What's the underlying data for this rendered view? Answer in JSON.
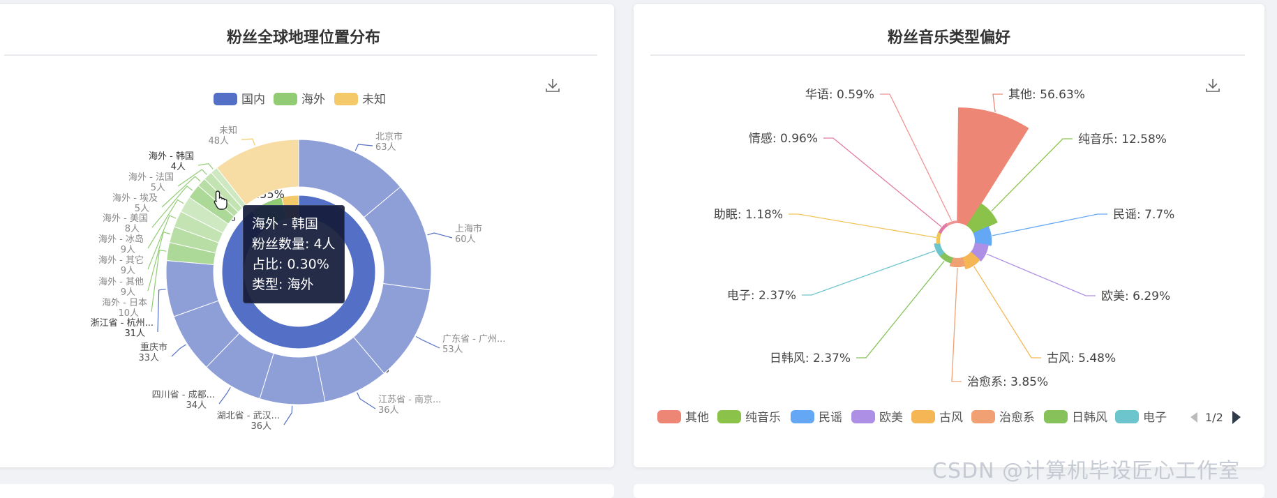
{
  "left_panel": {
    "title": "粉丝全球地理位置分布",
    "download_icon": "download-icon",
    "tooltip": {
      "name": "海外 - 韩国",
      "count": "粉丝数量: 4人",
      "ratio": "占比: 0.30%",
      "type": "类型: 海外"
    }
  },
  "right_panel": {
    "title": "粉丝音乐类型偏好",
    "download_icon": "download-icon",
    "page_indicator": "1/2"
  },
  "watermark": "CSDN @计算机毕设匠心工作室",
  "colors": {
    "domestic": "#5470c6",
    "overseas": "#91cc75",
    "unknown": "#f3c969",
    "domestic_outer": "#8e9fd8",
    "overseas_outer": "#c3e1b2",
    "unknown_outer": "#f7dca3"
  },
  "chart_data": [
    {
      "type": "pie",
      "subtype": "nested-donut",
      "legend": [
        "国内",
        "海外",
        "未知"
      ],
      "legend_placement": "top-center",
      "inner": [
        {
          "name": "国内",
          "percent_label": "89.64%",
          "value": 89.64
        },
        {
          "name": "海外",
          "percent_label": "6.81%",
          "value": 6.81
        },
        {
          "name": "未知",
          "percent_label": "3.55%",
          "value": 3.55
        }
      ],
      "outer": [
        {
          "name": "北京市",
          "value": 63,
          "value_label": "63人",
          "group": "国内"
        },
        {
          "name": "上海市",
          "value": 60,
          "value_label": "60人",
          "group": "国内"
        },
        {
          "name": "广东省 - 广州...",
          "value": 53,
          "value_label": "53人",
          "group": "国内"
        },
        {
          "name": "江苏省 - 南京...",
          "value": 36,
          "value_label": "36人",
          "group": "国内"
        },
        {
          "name": "湖北省 - 武汉...",
          "value": 36,
          "value_label": "36人",
          "group": "国内"
        },
        {
          "name": "四川省 - 成都...",
          "value": 34,
          "value_label": "34人",
          "group": "国内"
        },
        {
          "name": "重庆市",
          "value": 33,
          "value_label": "33人",
          "group": "国内"
        },
        {
          "name": "浙江省 - 杭州...",
          "value": 31,
          "value_label": "31人",
          "group": "国内"
        },
        {
          "name": "海外 - 日本",
          "value": 10,
          "value_label": "10人",
          "group": "海外"
        },
        {
          "name": "海外 - 其他",
          "value": 9,
          "value_label": "9人",
          "group": "海外"
        },
        {
          "name": "海外 - 其它",
          "value": 9,
          "value_label": "9人",
          "group": "海外"
        },
        {
          "name": "海外 - 冰岛",
          "value": 9,
          "value_label": "9人",
          "group": "海外"
        },
        {
          "name": "海外 - 美国",
          "value": 8,
          "value_label": "8人",
          "group": "海外"
        },
        {
          "name": "海外 - 埃及",
          "value": 5,
          "value_label": "5人",
          "group": "海外"
        },
        {
          "name": "海外 - 法国",
          "value": 5,
          "value_label": "5人",
          "group": "海外"
        },
        {
          "name": "海外 - 韩国",
          "value": 4,
          "value_label": "4人",
          "group": "海外"
        },
        {
          "name": "未知",
          "value": 48,
          "value_label": "48人",
          "group": "未知"
        }
      ]
    },
    {
      "type": "pie",
      "subtype": "nightingale-rose",
      "legend_placement": "bottom",
      "legend_page": "1/2",
      "legend": [
        "其他",
        "纯音乐",
        "民谣",
        "欧美",
        "古风",
        "治愈系",
        "日韩风",
        "电子"
      ],
      "slices": [
        {
          "name": "其他",
          "value": 56.63,
          "label": "其他: 56.63%",
          "color": "#ee8676"
        },
        {
          "name": "纯音乐",
          "value": 12.58,
          "label": "纯音乐: 12.58%",
          "color": "#8bc34a"
        },
        {
          "name": "民谣",
          "value": 7.7,
          "label": "民谣: 7.7%",
          "color": "#64a8f5"
        },
        {
          "name": "欧美",
          "value": 6.29,
          "label": "欧美: 6.29%",
          "color": "#ad8fe6"
        },
        {
          "name": "古风",
          "value": 5.48,
          "label": "古风: 5.48%",
          "color": "#f5b755"
        },
        {
          "name": "治愈系",
          "value": 3.85,
          "label": "治愈系: 3.85%",
          "color": "#f0a072"
        },
        {
          "name": "日韩风",
          "value": 2.37,
          "label": "日韩风: 2.37%",
          "color": "#86c15a"
        },
        {
          "name": "电子",
          "value": 2.37,
          "label": "电子: 2.37%",
          "color": "#6cc5cc"
        },
        {
          "name": "助眠",
          "value": 1.18,
          "label": "助眠: 1.18%",
          "color": "#f1c45a"
        },
        {
          "name": "情感",
          "value": 0.96,
          "label": "情感: 0.96%",
          "color": "#e07aa4"
        },
        {
          "name": "华语",
          "value": 0.59,
          "label": "华语: 0.59%",
          "color": "#ef9494"
        }
      ]
    }
  ]
}
